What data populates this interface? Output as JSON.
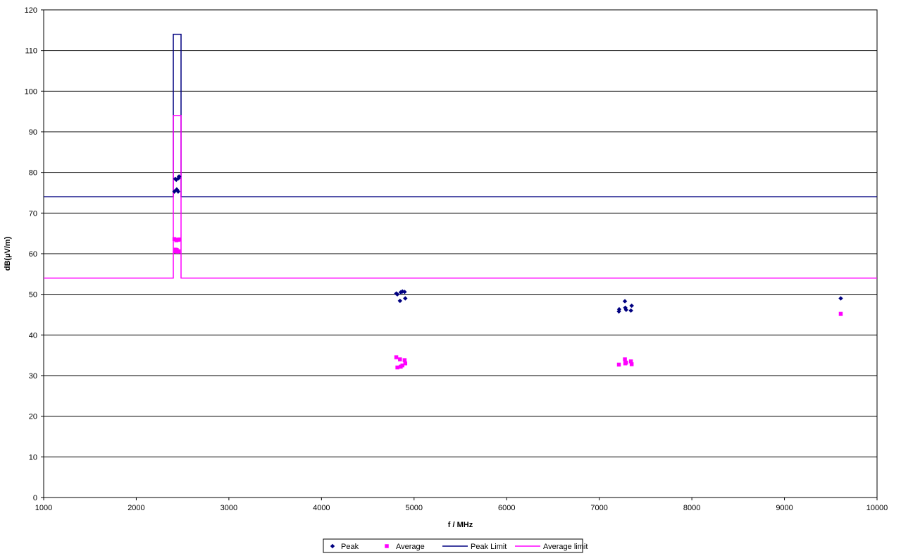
{
  "chart_data": {
    "type": "scatter",
    "title": "",
    "xlabel": "f / MHz",
    "ylabel": "dB(µV/m)",
    "xlim": [
      1000,
      10000
    ],
    "ylim": [
      0,
      120
    ],
    "xticks": [
      1000,
      2000,
      3000,
      4000,
      5000,
      6000,
      7000,
      8000,
      9000,
      10000
    ],
    "yticks": [
      0,
      10,
      20,
      30,
      40,
      50,
      60,
      70,
      80,
      90,
      100,
      110,
      120
    ],
    "grid": "horizontal",
    "legend_position": "bottom",
    "colors": {
      "peak": "#000080",
      "average": "#ff00ff"
    },
    "series": [
      {
        "name": "Peak",
        "kind": "points",
        "marker": "diamond",
        "color": "#000080",
        "points": [
          [
            2412,
            75.3
          ],
          [
            2422,
            78.4
          ],
          [
            2432,
            78.2
          ],
          [
            2437,
            75.8
          ],
          [
            2442,
            75.6
          ],
          [
            2452,
            75.3
          ],
          [
            2457,
            78.6
          ],
          [
            2462,
            79.0
          ],
          [
            4808,
            50.2
          ],
          [
            4820,
            50.0
          ],
          [
            4848,
            48.4
          ],
          [
            4856,
            50.5
          ],
          [
            4874,
            50.7
          ],
          [
            4898,
            50.6
          ],
          [
            4905,
            49.0
          ],
          [
            7212,
            45.8
          ],
          [
            7215,
            46.3
          ],
          [
            7277,
            48.3
          ],
          [
            7281,
            46.7
          ],
          [
            7290,
            46.2
          ],
          [
            7342,
            46.0
          ],
          [
            7350,
            47.2
          ],
          [
            9608,
            49.0
          ]
        ]
      },
      {
        "name": "Average",
        "kind": "points",
        "marker": "square",
        "color": "#ff00ff",
        "points": [
          [
            2412,
            63.6
          ],
          [
            2418,
            60.6
          ],
          [
            2425,
            61.0
          ],
          [
            2432,
            63.3
          ],
          [
            2437,
            60.9
          ],
          [
            2445,
            60.5
          ],
          [
            2452,
            63.4
          ],
          [
            2457,
            60.6
          ],
          [
            2462,
            63.5
          ],
          [
            4808,
            34.5
          ],
          [
            4820,
            32.0
          ],
          [
            4848,
            34.0
          ],
          [
            4856,
            32.2
          ],
          [
            4874,
            32.5
          ],
          [
            4898,
            33.8
          ],
          [
            4905,
            33.0
          ],
          [
            7212,
            32.7
          ],
          [
            7277,
            34.0
          ],
          [
            7281,
            33.0
          ],
          [
            7290,
            33.2
          ],
          [
            7342,
            33.5
          ],
          [
            7350,
            32.8
          ],
          [
            9608,
            45.2
          ]
        ]
      },
      {
        "name": "Peak Limit",
        "kind": "line",
        "color": "#000080",
        "points": [
          [
            1000,
            74
          ],
          [
            2400,
            74
          ],
          [
            2400,
            114
          ],
          [
            2483.5,
            114
          ],
          [
            2483.5,
            74
          ],
          [
            10000,
            74
          ]
        ]
      },
      {
        "name": "Average limit",
        "kind": "line",
        "color": "#ff00ff",
        "points": [
          [
            1000,
            54
          ],
          [
            2400,
            54
          ],
          [
            2400,
            94
          ],
          [
            2483.5,
            94
          ],
          [
            2483.5,
            54
          ],
          [
            10000,
            54
          ]
        ]
      }
    ]
  }
}
